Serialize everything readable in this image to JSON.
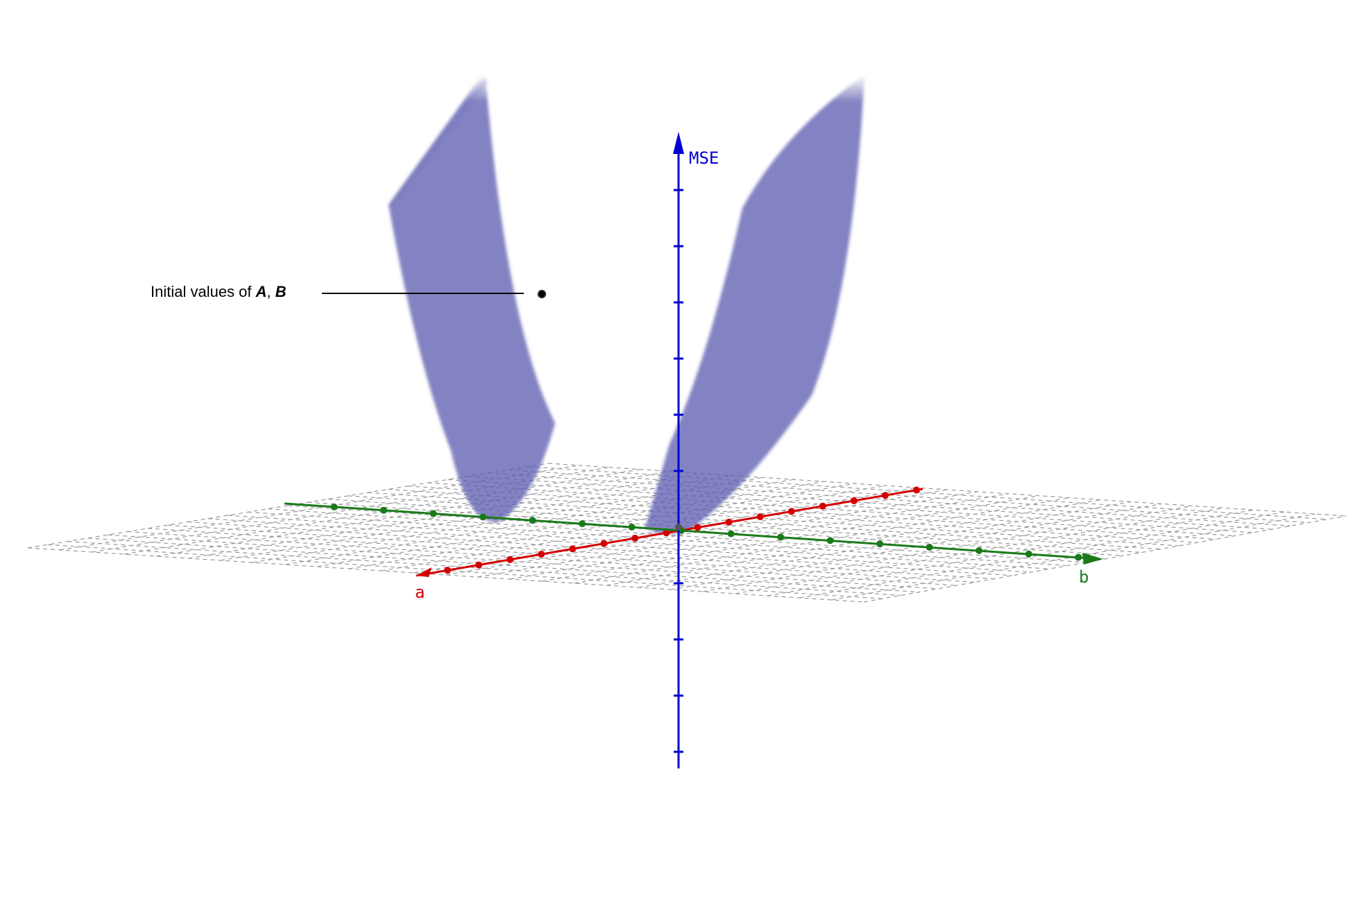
{
  "colors": {
    "a_axis": "#d40000",
    "b_axis": "#1a7a1a",
    "mse_axis": "#0000d0",
    "surface": "#5c5cb0",
    "grid": "#9a9a9a",
    "point": "#000000"
  },
  "axes": {
    "a_label": "a",
    "b_label": "b",
    "mse_label": "MSE"
  },
  "annotation": {
    "prefix": "Initial values of ",
    "var1": "A",
    "sep": ", ",
    "var2": "B"
  }
}
